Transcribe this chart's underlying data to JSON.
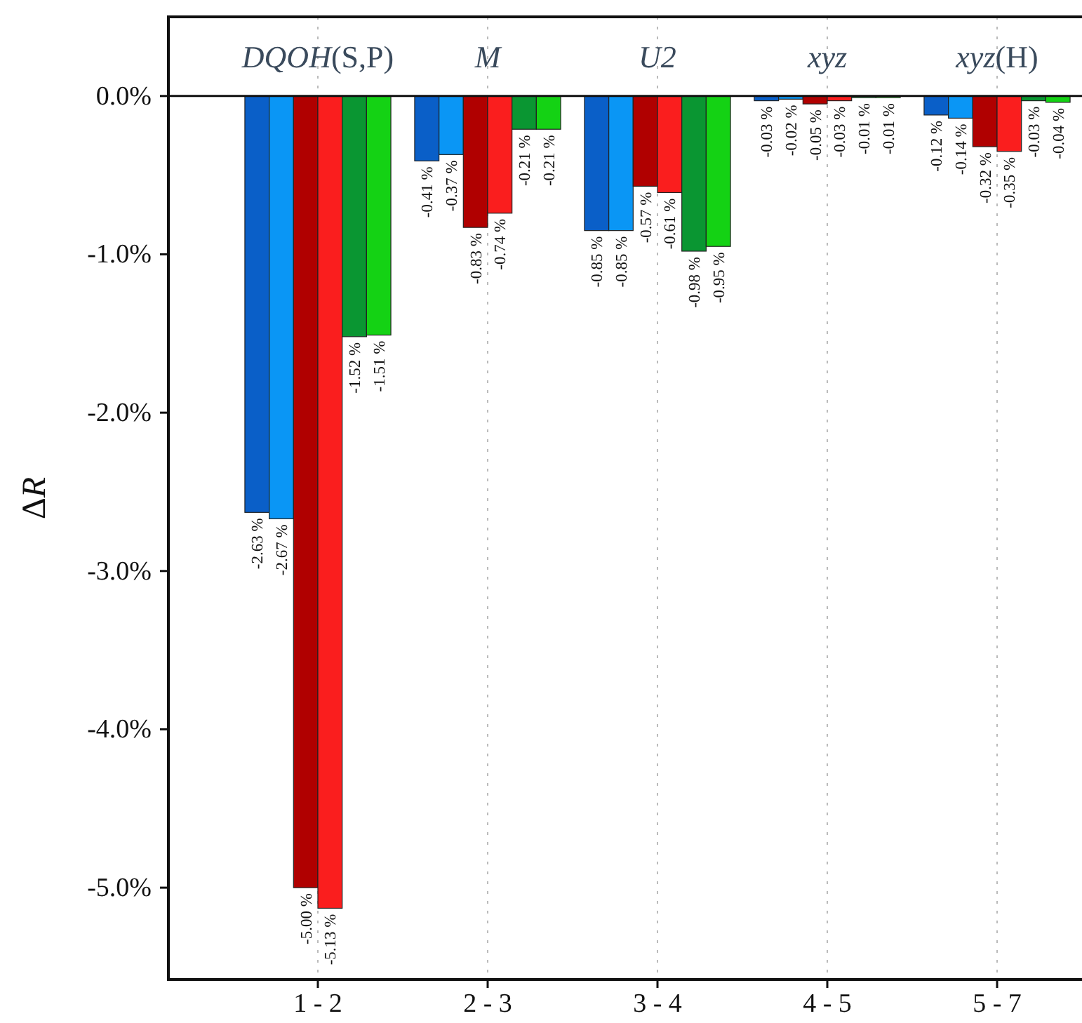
{
  "chart_data": {
    "type": "bar",
    "ylabel": "ΔR",
    "categories": [
      "1 - 2",
      "2 - 3",
      "3 - 4",
      "4 - 5",
      "5 - 7"
    ],
    "series": [
      {
        "color": "#0a5fc8",
        "values": [
          -2.63,
          -0.41,
          -0.85,
          -0.03,
          -0.12
        ],
        "value_labels": [
          "-2.63 %",
          "-0.41 %",
          "-0.85 %",
          "-0.03 %",
          "-0.12 %"
        ]
      },
      {
        "color": "#0a96f5",
        "values": [
          -2.67,
          -0.37,
          -0.85,
          -0.02,
          -0.14
        ],
        "value_labels": [
          "-2.67 %",
          "-0.37 %",
          "-0.85 %",
          "-0.02 %",
          "-0.14 %"
        ]
      },
      {
        "color": "#b00000",
        "values": [
          -5.0,
          -0.83,
          -0.57,
          -0.05,
          -0.32
        ],
        "value_labels": [
          "-5.00 %",
          "-0.83 %",
          "-0.57 %",
          "-0.05 %",
          "-0.32 %"
        ]
      },
      {
        "color": "#fa1e1e",
        "values": [
          -5.13,
          -0.74,
          -0.61,
          -0.03,
          -0.35
        ],
        "value_labels": [
          "-5.13 %",
          "-0.74 %",
          "-0.61 %",
          "-0.03 %",
          "-0.35 %"
        ]
      },
      {
        "color": "#0a9632",
        "values": [
          -1.52,
          -0.21,
          -0.98,
          -0.01,
          -0.03
        ],
        "value_labels": [
          "-1.52 %",
          "-0.21 %",
          "-0.98 %",
          "-0.01 %",
          "-0.03 %"
        ]
      },
      {
        "color": "#14d214",
        "values": [
          -1.51,
          -0.21,
          -0.95,
          -0.01,
          -0.04
        ],
        "value_labels": [
          "-1.51 %",
          "-0.21 %",
          "-0.95 %",
          "-0.01 %",
          "-0.04 %"
        ]
      }
    ],
    "ylim": [
      -5.58,
      0.5
    ],
    "yticks": [
      {
        "value": 0,
        "label": "0.0%"
      },
      {
        "value": -1,
        "label": "-1.0%"
      },
      {
        "value": -2,
        "label": "-2.0%"
      },
      {
        "value": -3,
        "label": "-3.0%"
      },
      {
        "value": -4,
        "label": "-4.0%"
      },
      {
        "value": -5,
        "label": "-5.0%"
      }
    ],
    "grid": "x",
    "annotations": [
      "DQOH(S,P)",
      "M",
      "U2",
      "xyz",
      "xyz(H)"
    ]
  }
}
